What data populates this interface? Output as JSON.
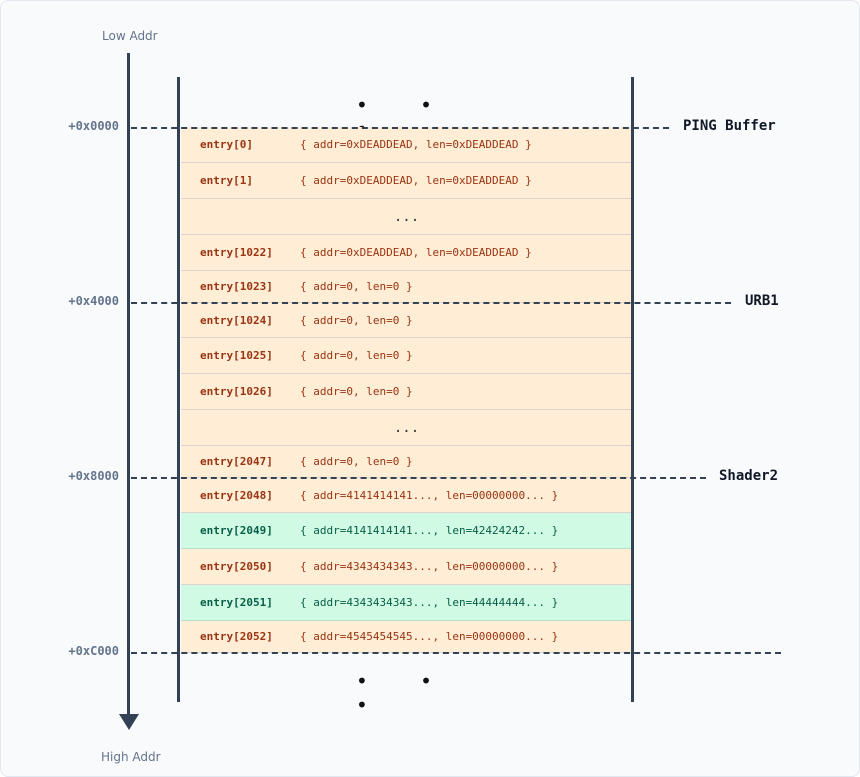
{
  "labels": {
    "low": "Low Addr",
    "high": "High Addr",
    "top_dots": "• • •",
    "bottom_dots": "• • •"
  },
  "offsets": [
    {
      "offset": "+0x0000",
      "region": "PING Buffer"
    },
    {
      "offset": "+0x4000",
      "region": "URB1"
    },
    {
      "offset": "+0x8000",
      "region": "Shader2"
    },
    {
      "offset": "+0xC000",
      "region": ""
    }
  ],
  "rows": [
    {
      "name": "entry[0]",
      "value": "{ addr=0xDEADDEAD, len=0xDEADDEAD }",
      "color": "peach"
    },
    {
      "name": "entry[1]",
      "value": "{ addr=0xDEADDEAD, len=0xDEADDEAD }",
      "color": "peach"
    },
    {
      "name": "",
      "value": "...",
      "color": "peach"
    },
    {
      "name": "entry[1022]",
      "value": "{ addr=0xDEADDEAD, len=0xDEADDEAD }",
      "color": "peach"
    },
    {
      "name": "entry[1023]",
      "value": "{ addr=0, len=0 }",
      "color": "peach"
    },
    {
      "name": "entry[1024]",
      "value": "{ addr=0, len=0 }",
      "color": "peach"
    },
    {
      "name": "entry[1025]",
      "value": "{ addr=0, len=0 }",
      "color": "peach"
    },
    {
      "name": "entry[1026]",
      "value": "{ addr=0, len=0 }",
      "color": "peach"
    },
    {
      "name": "",
      "value": "...",
      "color": "peach"
    },
    {
      "name": "entry[2047]",
      "value": "{ addr=0, len=0 }",
      "color": "peach"
    },
    {
      "name": "entry[2048]",
      "value": "{ addr=4141414141..., len=00000000... }",
      "color": "peach"
    },
    {
      "name": "entry[2049]",
      "value": "{ addr=4141414141..., len=42424242... }",
      "color": "green"
    },
    {
      "name": "entry[2050]",
      "value": "{ addr=4343434343..., len=00000000... }",
      "color": "peach"
    },
    {
      "name": "entry[2051]",
      "value": "{ addr=4343434343..., len=44444444... }",
      "color": "green"
    },
    {
      "name": "entry[2052]",
      "value": "{ addr=4545454545..., len=00000000... }",
      "color": "peach"
    }
  ],
  "colors": {
    "peach": "#ffedd5",
    "green": "#d1fae5",
    "peach_text": "#9a3412",
    "green_text": "#065f46",
    "axis": "#334155"
  }
}
